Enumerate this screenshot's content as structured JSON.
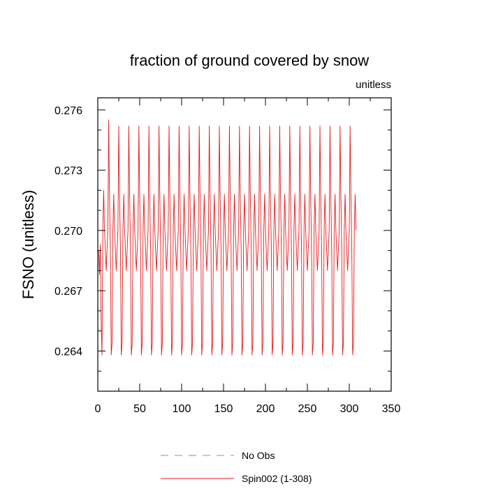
{
  "chart_data": {
    "type": "line",
    "title": "fraction of ground covered by snow",
    "units_label": "unitless",
    "xlabel": "",
    "ylabel": "FSNO  (unitless)",
    "xlim": [
      0,
      350
    ],
    "ylim": [
      0.262,
      0.2766
    ],
    "x_ticks": [
      0,
      50,
      100,
      150,
      200,
      250,
      300,
      350
    ],
    "x_tick_labels": [
      "0",
      "50",
      "100",
      "150",
      "200",
      "250",
      "300",
      "350"
    ],
    "y_ticks": [
      0.264,
      0.267,
      0.27,
      0.273,
      0.276
    ],
    "y_tick_labels": [
      "0.264",
      "0.267",
      "0.270",
      "0.273",
      "0.276"
    ],
    "grid": false,
    "legend_position": "bottom",
    "series": [
      {
        "name": "No Obs",
        "color": "#8a8ad8",
        "dash": "dashed",
        "values": []
      },
      {
        "name": "Spin002 (1-308)",
        "color": "#e41a1c",
        "dash": "solid",
        "months": 308,
        "pattern": "annual_cycle",
        "cycle_values": [
          0.2752,
          0.2716,
          0.2691,
          0.2638,
          0.2644,
          0.27,
          0.2718,
          0.27,
          0.269,
          0.268,
          0.269,
          0.27
        ],
        "initial_values": [
          0.269,
          0.2678,
          0.2693,
          0.2655,
          0.2638,
          0.27,
          0.272,
          0.27,
          0.269,
          0.268,
          0.269,
          0.27,
          0.2755
        ]
      }
    ]
  }
}
